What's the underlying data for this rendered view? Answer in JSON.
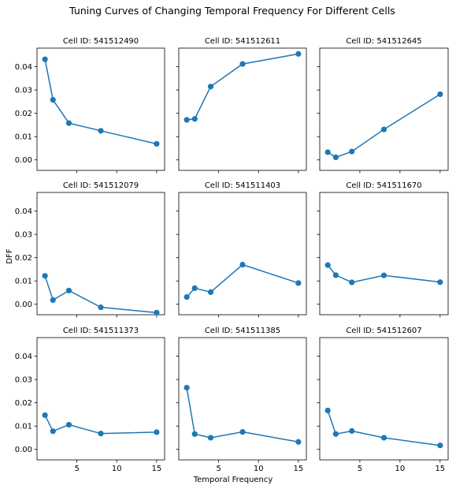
{
  "figure": {
    "suptitle": "Tuning Curves of Changing Temporal Frequency For Different Cells",
    "ylabel": "DFF",
    "xlabel": "Temporal Frequency"
  },
  "style": {
    "line_color": "#1f77b4",
    "axes_color": "#000000",
    "background": "#ffffff"
  },
  "chart_data": [
    {
      "type": "line",
      "title": "Cell ID: 541512490",
      "x": [
        1,
        2,
        4,
        8,
        15
      ],
      "y": [
        0.0432,
        0.0258,
        0.0158,
        0.0125,
        0.0069
      ],
      "xlim": [
        0,
        16
      ],
      "ylim": [
        -0.0045,
        0.048
      ],
      "xticks": [
        5,
        10,
        15
      ],
      "yticks": [
        0.0,
        0.01,
        0.02,
        0.03,
        0.04
      ],
      "ytick_labels": [
        "0.00",
        "0.01",
        "0.02",
        "0.03",
        "0.04"
      ]
    },
    {
      "type": "line",
      "title": "Cell ID: 541512611",
      "x": [
        1,
        2,
        4,
        8,
        15
      ],
      "y": [
        0.0172,
        0.0176,
        0.0315,
        0.0412,
        0.0455
      ],
      "xlim": [
        0,
        16
      ],
      "ylim": [
        -0.0045,
        0.048
      ],
      "xticks": [
        5,
        10,
        15
      ],
      "yticks": [
        0.0,
        0.01,
        0.02,
        0.03,
        0.04
      ]
    },
    {
      "type": "line",
      "title": "Cell ID: 541512645",
      "x": [
        1,
        2,
        4,
        8,
        15
      ],
      "y": [
        0.0033,
        0.0011,
        0.0036,
        0.0131,
        0.0282
      ],
      "xlim": [
        0,
        16
      ],
      "ylim": [
        -0.0045,
        0.048
      ],
      "xticks": [
        5,
        10,
        15
      ],
      "yticks": [
        0.0,
        0.01,
        0.02,
        0.03,
        0.04
      ]
    },
    {
      "type": "line",
      "title": "Cell ID: 541512079",
      "x": [
        1,
        2,
        4,
        8,
        15
      ],
      "y": [
        0.0122,
        0.0018,
        0.0059,
        -0.0013,
        -0.0036
      ],
      "xlim": [
        0,
        16
      ],
      "ylim": [
        -0.0045,
        0.048
      ],
      "xticks": [
        5,
        10,
        15
      ],
      "yticks": [
        0.0,
        0.01,
        0.02,
        0.03,
        0.04
      ],
      "ytick_labels": [
        "0.00",
        "0.01",
        "0.02",
        "0.03",
        "0.04"
      ]
    },
    {
      "type": "line",
      "title": "Cell ID: 541511403",
      "x": [
        1,
        2,
        4,
        8,
        15
      ],
      "y": [
        0.0031,
        0.0069,
        0.0052,
        0.017,
        0.0091
      ],
      "xlim": [
        0,
        16
      ],
      "ylim": [
        -0.0045,
        0.048
      ],
      "xticks": [
        5,
        10,
        15
      ],
      "yticks": [
        0.0,
        0.01,
        0.02,
        0.03,
        0.04
      ]
    },
    {
      "type": "line",
      "title": "Cell ID: 541511670",
      "x": [
        1,
        2,
        4,
        8,
        15
      ],
      "y": [
        0.0168,
        0.0125,
        0.0094,
        0.0124,
        0.0095
      ],
      "xlim": [
        0,
        16
      ],
      "ylim": [
        -0.0045,
        0.048
      ],
      "xticks": [
        5,
        10,
        15
      ],
      "yticks": [
        0.0,
        0.01,
        0.02,
        0.03,
        0.04
      ]
    },
    {
      "type": "line",
      "title": "Cell ID: 541511373",
      "x": [
        1,
        2,
        4,
        8,
        15
      ],
      "y": [
        0.0147,
        0.0078,
        0.0106,
        0.0068,
        0.0074
      ],
      "xlim": [
        0,
        16
      ],
      "ylim": [
        -0.0045,
        0.048
      ],
      "xticks": [
        5,
        10,
        15
      ],
      "xtick_labels": [
        "5",
        "10",
        "15"
      ],
      "yticks": [
        0.0,
        0.01,
        0.02,
        0.03,
        0.04
      ],
      "ytick_labels": [
        "0.00",
        "0.01",
        "0.02",
        "0.03",
        "0.04"
      ]
    },
    {
      "type": "line",
      "title": "Cell ID: 541511385",
      "x": [
        1,
        2,
        4,
        8,
        15
      ],
      "y": [
        0.0265,
        0.0066,
        0.005,
        0.0075,
        0.0032
      ],
      "xlim": [
        0,
        16
      ],
      "ylim": [
        -0.0045,
        0.048
      ],
      "xticks": [
        5,
        10,
        15
      ],
      "xtick_labels": [
        "5",
        "10",
        "15"
      ],
      "yticks": [
        0.0,
        0.01,
        0.02,
        0.03,
        0.04
      ]
    },
    {
      "type": "line",
      "title": "Cell ID: 541512607",
      "x": [
        1,
        2,
        4,
        8,
        15
      ],
      "y": [
        0.0167,
        0.0066,
        0.0079,
        0.005,
        0.0017
      ],
      "xlim": [
        0,
        16
      ],
      "ylim": [
        -0.0045,
        0.048
      ],
      "xticks": [
        5,
        10,
        15
      ],
      "xtick_labels": [
        "5",
        "10",
        "15"
      ],
      "yticks": [
        0.0,
        0.01,
        0.02,
        0.03,
        0.04
      ]
    }
  ]
}
